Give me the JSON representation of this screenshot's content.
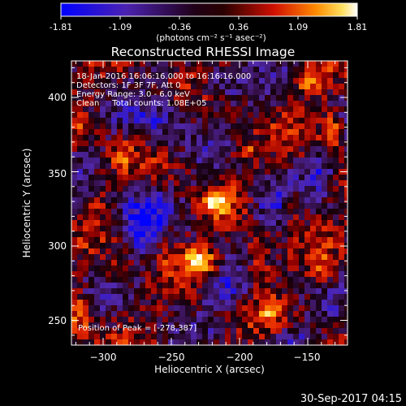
{
  "colorbar": {
    "ticks": [
      "-1.81",
      "-1.09",
      "-0.36",
      "0.36",
      "1.09",
      "1.81"
    ],
    "units_line": "(photons cm⁻² s⁻¹ asec⁻²)"
  },
  "title": "Reconstructed RHESSI Image",
  "info": {
    "line1": "18-Jan-2016 16:06:16.000 to 16:16:16.000",
    "line2": "Detectors: 1F 3F 7F, Att 0",
    "line3": "Energy Range: 3.0 - 6.0 keV",
    "line4": "Clean     Total counts: 1.08E+05"
  },
  "peak_text": "Position of Peak = [-278,387]",
  "x_axis": {
    "label": "Heliocentric X (arcsec)",
    "ticks": [
      "−300",
      "−250",
      "−200",
      "−150"
    ]
  },
  "y_axis": {
    "label": "Heliocentric Y (arcsec)",
    "ticks": [
      "250",
      "300",
      "350",
      "400"
    ]
  },
  "timestamp": "30-Sep-2017 04:15",
  "colors": {
    "background": "#000000",
    "text": "#ffffff",
    "colormap": [
      "#0000ff",
      "#4020a0",
      "#000000",
      "#c00000",
      "#ff6000",
      "#ffd000",
      "#ffffff"
    ]
  }
}
